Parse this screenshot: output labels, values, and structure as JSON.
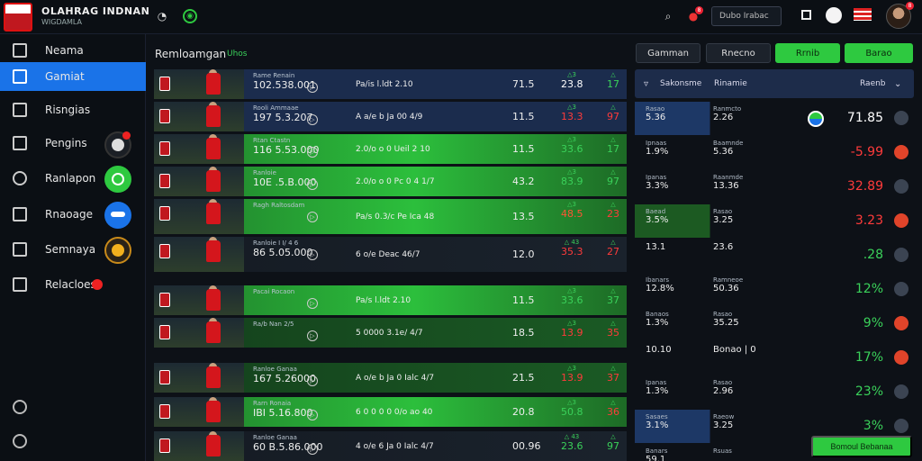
{
  "app": {
    "title": "OLAHRAG INDNAN",
    "subtitle": "WIGDAMLA"
  },
  "topbar": {
    "search_text": "Dubo Irabac",
    "notif_count": "8",
    "avatar_badge": "8"
  },
  "sidebar": {
    "items": [
      {
        "label": "Neama"
      },
      {
        "label": "Gamiat"
      },
      {
        "label": "Risngias"
      },
      {
        "label": "Pengins"
      },
      {
        "label": "Ranlapon"
      },
      {
        "label": "Rnaoage"
      },
      {
        "label": "Semnaya"
      },
      {
        "label": "Relacloes"
      }
    ]
  },
  "main": {
    "title": "Remloamgan",
    "sub": "Uhos",
    "buttons": [
      {
        "label": "Gamman"
      },
      {
        "label": "Rnecno"
      },
      {
        "label": "Rrnib"
      },
      {
        "label": "Barao"
      }
    ]
  },
  "matches": [
    {
      "league": "Rame Renain",
      "time": "102.538.001",
      "teams": "Pa/is l.ldt 2.10",
      "o1": "71.5",
      "o2": "23.8",
      "o2_arrow": "△3",
      "o3": "17",
      "bg": "blue",
      "o2c": "#ffffff",
      "o3c": "#3ad15a"
    },
    {
      "league": "Rooli Ammaae",
      "time": "197 5.3.207",
      "teams": "A a/e b Ja 00 4/9",
      "o1": "11.5",
      "o2": "13.3",
      "o2_arrow": "△3",
      "o3": "97",
      "bg": "blue",
      "o2c": "#ff3b3b",
      "o3c": "#ff3b3b"
    },
    {
      "league": "Rtan Ctastn",
      "time": "116 5.53.000",
      "teams": "2.0/o o 0 Ueil 2 10",
      "o1": "11.5",
      "o2": "33.6",
      "o2_arrow": "△3",
      "o3": "17",
      "bg": "green",
      "o2c": "#3ad15a",
      "o3c": "#3ad15a"
    },
    {
      "league": "Ranloie",
      "time": "10E .5.B.000",
      "teams": "2.0/o o 0 Pc 0 4 1/7",
      "o1": "43.2",
      "o2": "83.9",
      "o2_arrow": "△3",
      "o3": "97",
      "bg": "green",
      "o2c": "#3ad15a",
      "o3c": "#3ad15a"
    },
    {
      "league": "Ragh Raltosdam",
      "time": "",
      "teams": "Pa/s 0.3/c Pe Ica 48",
      "o1": "13.5",
      "o2": "48.5",
      "o2_arrow": "△3",
      "o3": "23",
      "bg": "green",
      "o2c": "#ff5533",
      "o3c": "#ff3b3b"
    },
    {
      "league": "Ranloie I I/ 4 6",
      "time": "86 5.05.000",
      "teams": "6 o/e Deac 46/7",
      "o1": "12.0",
      "o2": "35.3",
      "o2_arrow": "△ 43",
      "o3": "27",
      "bg": "dark",
      "o2c": "#ff3b3b",
      "o3c": "#ff3b3b"
    },
    {
      "league": "Pacai Rocaon",
      "time": "",
      "teams": "Pa/s l.ldt 2.10",
      "o1": "11.5",
      "o2": "33.6",
      "o2_arrow": "△3",
      "o3": "37",
      "bg": "green",
      "o2c": "#3ad15a",
      "o3c": "#3ad15a"
    },
    {
      "league": "Ra/b Nan 2/5",
      "time": "",
      "teams": "5 0000 3.1e/ 4/7",
      "o1": "18.5",
      "o2": "13.9",
      "o2_arrow": "△3",
      "o3": "35",
      "bg": "dkgreen",
      "o2c": "#ff3b3b",
      "o3c": "#ff3b3b"
    },
    {
      "league": "Ranloe Ganaa",
      "time": "167 5.26000",
      "teams": "A o/e b Ja 0 Ialc 4/7",
      "o1": "21.5",
      "o2": "13.9",
      "o2_arrow": "△3",
      "o3": "37",
      "bg": "dkgreen",
      "o2c": "#ff3b3b",
      "o3c": "#ff3b3b"
    },
    {
      "league": "Rarn Ronaia",
      "time": "IBI 5.16.800",
      "teams": "6 0 0 0 0 0/o ao 40",
      "o1": "20.8",
      "o2": "50.8",
      "o2_arrow": "△3",
      "o3": "36",
      "bg": "green",
      "o2c": "#3ad15a",
      "o3c": "#ff3b3b"
    },
    {
      "league": "Ranloe Ganaa",
      "time": "60 B.5.86.000",
      "teams": "4 o/e 6 Ja 0 Ialc 4/7",
      "o1": "00.96",
      "o2": "23.6",
      "o2_arrow": "△ 43",
      "o3": "97",
      "bg": "dark",
      "o2c": "#3ad15a",
      "o3c": "#3ad15a"
    }
  ],
  "right": {
    "head": {
      "col1": "Sakonsme",
      "col2": "Rinamie",
      "col3": "Raenb"
    },
    "rows": [
      {
        "l1": "Rasao",
        "v1": "5.36",
        "l2": "Ranmcto",
        "v2": "2.26",
        "v3": "71.85",
        "c3": "#ffffff",
        "go": "grey",
        "hl": "blue"
      },
      {
        "l1": "Ipnaas",
        "v1": "1.9%",
        "l2": "Baamnde",
        "v2": "5.36",
        "v3": "-5.99",
        "c3": "#ff3b3b",
        "go": "red",
        "hl": ""
      },
      {
        "l1": "Ipanas",
        "v1": "3.3%",
        "l2": "Raanmde",
        "v2": "13.36",
        "v3": "32.89",
        "c3": "#ff3b3b",
        "go": "grey",
        "hl": ""
      },
      {
        "l1": "Baead",
        "v1": "3.5%",
        "l2": "Rasao",
        "v2": "3.25",
        "v3": "3.23",
        "c3": "#ff3b3b",
        "go": "red",
        "hl": "green"
      },
      {
        "l1": "",
        "v1": "13.1",
        "l2": "",
        "v2": "23.6",
        "v3": ".28",
        "c3": "#3ad15a",
        "go": "grey",
        "hl": ""
      },
      {
        "l1": "Ibanars",
        "v1": "12.8%",
        "l2": "Ramneoe",
        "v2": "50.36",
        "v3": "12%",
        "c3": "#3ad15a",
        "go": "grey",
        "hl": ""
      },
      {
        "l1": "Banaos",
        "v1": "1.3%",
        "l2": "Rasao",
        "v2": "35.25",
        "v3": "9%",
        "c3": "#3ad15a",
        "go": "red",
        "hl": ""
      },
      {
        "l1": "",
        "v1": "10.10",
        "l2": "",
        "v2": "Bonao | 0",
        "v3": "17%",
        "c3": "#3ad15a",
        "go": "red",
        "hl": ""
      },
      {
        "l1": "Ipanas",
        "v1": "1.3%",
        "l2": "Rasao",
        "v2": "2.96",
        "v3": "23%",
        "c3": "#3ad15a",
        "go": "grey",
        "hl": ""
      },
      {
        "l1": "Sasaes",
        "v1": "3.1%",
        "l2": "Raeow",
        "v2": "3.25",
        "v3": "3%",
        "c3": "#3ad15a",
        "go": "grey",
        "hl": "blue"
      },
      {
        "l1": "Banars",
        "v1": "59.1",
        "l2": "Rsuas",
        "v2": "",
        "v3": "",
        "c3": "#ffffff",
        "go": "none",
        "hl": ""
      }
    ],
    "footer_button": "Bomoul Bebanaa"
  }
}
